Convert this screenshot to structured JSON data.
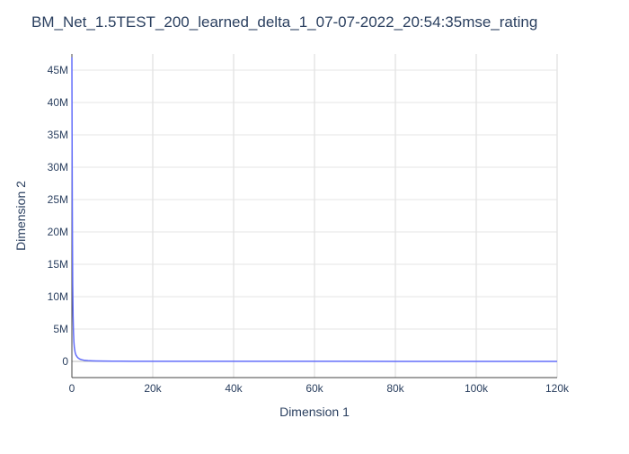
{
  "chart_data": {
    "type": "line",
    "title": "BM_Net_1.5TEST_200_learned_delta_1_07-07-2022_20:54:35mse_rating",
    "xlabel": "Dimension 1",
    "ylabel": "Dimension 2",
    "xlim": [
      0,
      120000
    ],
    "ylim": [
      -2500000,
      47500000
    ],
    "x_ticks": [
      0,
      20000,
      40000,
      60000,
      80000,
      100000,
      120000
    ],
    "x_tick_labels": [
      "0",
      "20k",
      "40k",
      "60k",
      "80k",
      "100k",
      "120k"
    ],
    "y_ticks": [
      0,
      5000000,
      10000000,
      15000000,
      20000000,
      25000000,
      30000000,
      35000000,
      40000000,
      45000000
    ],
    "y_tick_labels": [
      "0",
      "5M",
      "10M",
      "15M",
      "20M",
      "25M",
      "30M",
      "35M",
      "40M",
      "45M"
    ],
    "grid": true,
    "series": [
      {
        "color": "#636efa",
        "x": [
          0,
          20,
          50,
          100,
          150,
          200,
          300,
          400,
          500,
          600,
          800,
          1000,
          1300,
          1600,
          2000,
          2500,
          3000,
          4000,
          5000,
          6000,
          8000,
          10000,
          12000,
          15000,
          20000,
          30000,
          40000,
          60000,
          80000,
          100000,
          120000
        ],
        "y": [
          47000000,
          42000000,
          35000000,
          25000000,
          18000000,
          12000000,
          7000000,
          4500000,
          3000000,
          2200000,
          1400000,
          1000000,
          700000,
          500000,
          350000,
          250000,
          180000,
          120000,
          90000,
          70000,
          50000,
          40000,
          30000,
          25000,
          20000,
          15000,
          12000,
          10000,
          8000,
          7000,
          6000
        ]
      }
    ]
  }
}
